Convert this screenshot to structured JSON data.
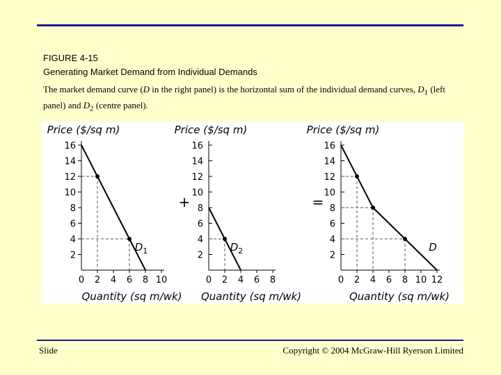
{
  "header": {
    "figure_label": "FIGURE 4-15",
    "figure_title": "Generating Market Demand from Individual Demands",
    "caption": {
      "pre": "The market demand curve (",
      "d": "D",
      "mid1": " in the right panel) is the horizontal sum of the individual demand curves, ",
      "d1_base": "D",
      "d1_sub": "1",
      "mid2": " (left panel) and ",
      "d2_base": "D",
      "d2_sub": "2",
      "post": " (centre panel)."
    }
  },
  "footer": {
    "left": "Slide",
    "right": "Copyright © 2004 McGraw-Hill Ryerson Limited"
  },
  "operators": {
    "plus": "+",
    "equals": "="
  },
  "chart_data": [
    {
      "type": "line",
      "panel": "left",
      "ylabel": "Price ($/sq m)",
      "xlabel": "Quantity (sq m/wk)",
      "yticks": [
        2,
        4,
        6,
        8,
        10,
        12,
        14,
        16
      ],
      "xticks": [
        0,
        2,
        4,
        6,
        8,
        10
      ],
      "xlim": [
        0,
        10
      ],
      "ylim": [
        0,
        16
      ],
      "series": [
        {
          "name": "D1",
          "label_base": "D",
          "label_sub": "1",
          "x": [
            0,
            2,
            6,
            8
          ],
          "y": [
            16,
            12,
            4,
            0
          ]
        }
      ],
      "highlighted_points": [
        {
          "x": 2,
          "y": 12
        },
        {
          "x": 6,
          "y": 4
        }
      ],
      "grid": "dashed reference lines at highlighted points"
    },
    {
      "type": "line",
      "panel": "centre",
      "ylabel": "Price ($/sq m)",
      "xlabel": "Quantity (sq m/wk)",
      "yticks": [
        2,
        4,
        6,
        8,
        10,
        12,
        14,
        16
      ],
      "xticks": [
        0,
        2,
        4,
        6,
        8
      ],
      "xlim": [
        0,
        8
      ],
      "ylim": [
        0,
        16
      ],
      "series": [
        {
          "name": "D2",
          "label_base": "D",
          "label_sub": "2",
          "x": [
            0,
            2,
            4
          ],
          "y": [
            8,
            4,
            0
          ]
        }
      ],
      "highlighted_points": [
        {
          "x": 2,
          "y": 4
        }
      ],
      "grid": "dashed reference lines at highlighted points"
    },
    {
      "type": "line",
      "panel": "right",
      "ylabel": "Price ($/sq m)",
      "xlabel": "Quantity (sq m/wk)",
      "yticks": [
        2,
        4,
        6,
        8,
        10,
        12,
        14,
        16
      ],
      "xticks": [
        0,
        2,
        4,
        6,
        8,
        10,
        12
      ],
      "xlim": [
        0,
        12
      ],
      "ylim": [
        0,
        16
      ],
      "series": [
        {
          "name": "D",
          "label_base": "D",
          "label_sub": "",
          "x": [
            0,
            2,
            4,
            8,
            12
          ],
          "y": [
            16,
            12,
            8,
            4,
            0
          ]
        }
      ],
      "highlighted_points": [
        {
          "x": 2,
          "y": 12
        },
        {
          "x": 4,
          "y": 8
        },
        {
          "x": 8,
          "y": 4
        }
      ],
      "grid": "dashed reference lines at highlighted points"
    }
  ],
  "colors": {
    "background": "#ffffcc",
    "rule": "#1c1c8f",
    "curve": "#000000",
    "dash": "#555555"
  }
}
